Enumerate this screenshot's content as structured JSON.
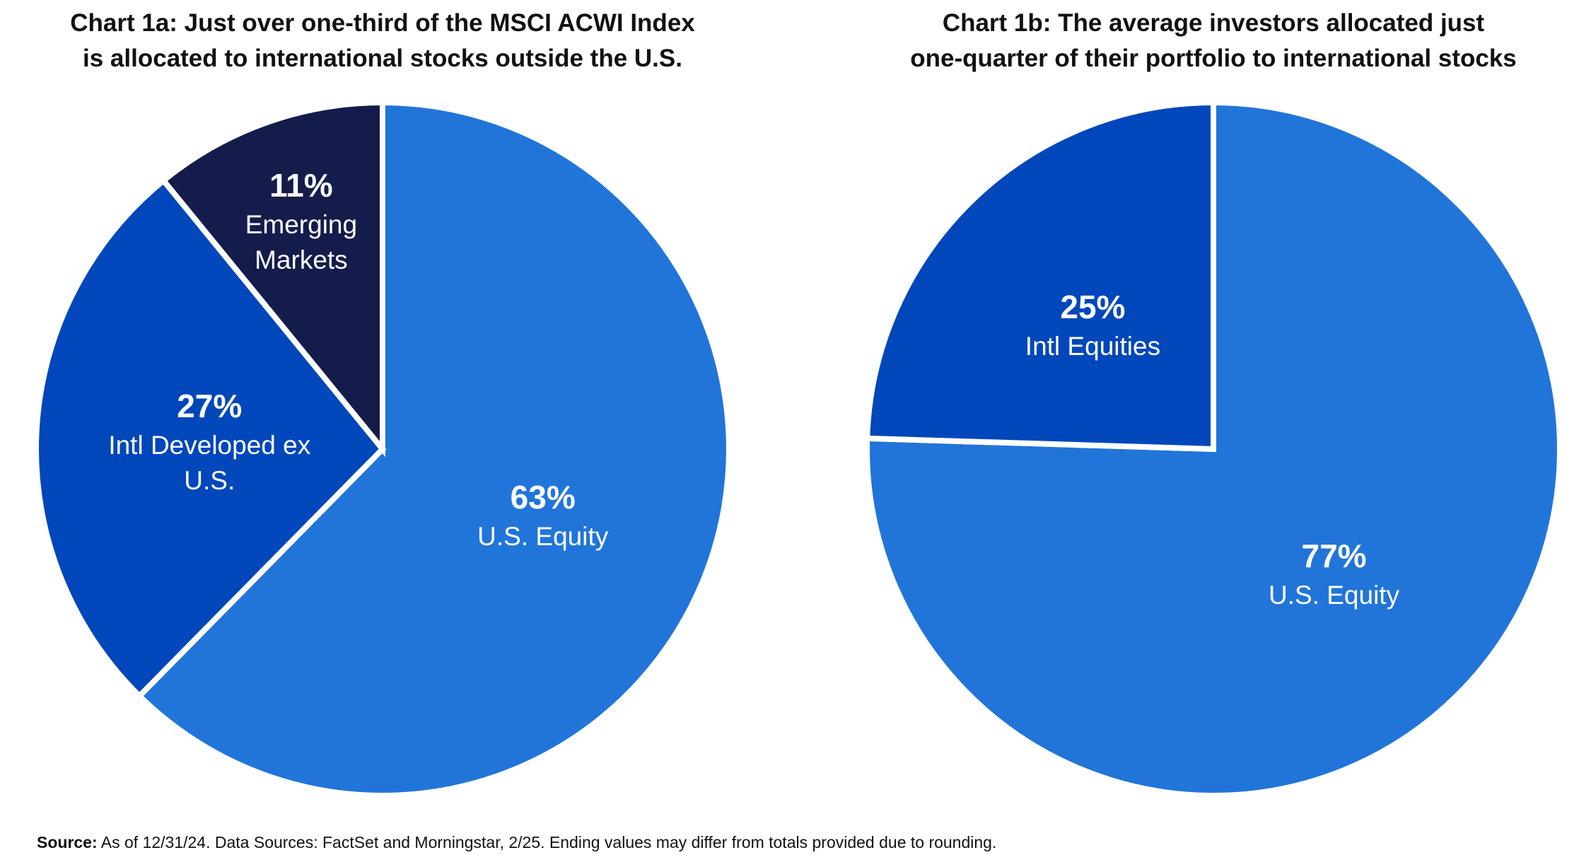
{
  "charts": [
    {
      "chart_data": {
        "type": "pie",
        "title": [
          "Chart 1a: Just over one-third of the MSCI ACWI Index",
          "is allocated to international stocks outside the U.S."
        ],
        "categories": [
          "U.S. Equity",
          "Intl Developed ex U.S.",
          "Emerging Markets"
        ],
        "values": [
          63,
          27,
          11
        ],
        "value_labels": [
          "63%",
          "27%",
          "11%"
        ],
        "colors": [
          "#2175d9",
          "#0047bb",
          "#141c4c"
        ]
      }
    },
    {
      "chart_data": {
        "type": "pie",
        "title": [
          "Chart 1b: The average investors allocated just",
          "one-quarter of their portfolio to international stocks"
        ],
        "categories": [
          "U.S. Equity",
          "Intl Equities"
        ],
        "values": [
          77,
          25
        ],
        "value_labels": [
          "77%",
          "25%"
        ],
        "colors": [
          "#2175d9",
          "#0047bb"
        ]
      }
    }
  ],
  "footer": {
    "label": "Source:",
    "text": "As of 12/31/24. Data Sources: FactSet and Morningstar, 2/25. Ending values may differ from totals provided due to rounding."
  }
}
